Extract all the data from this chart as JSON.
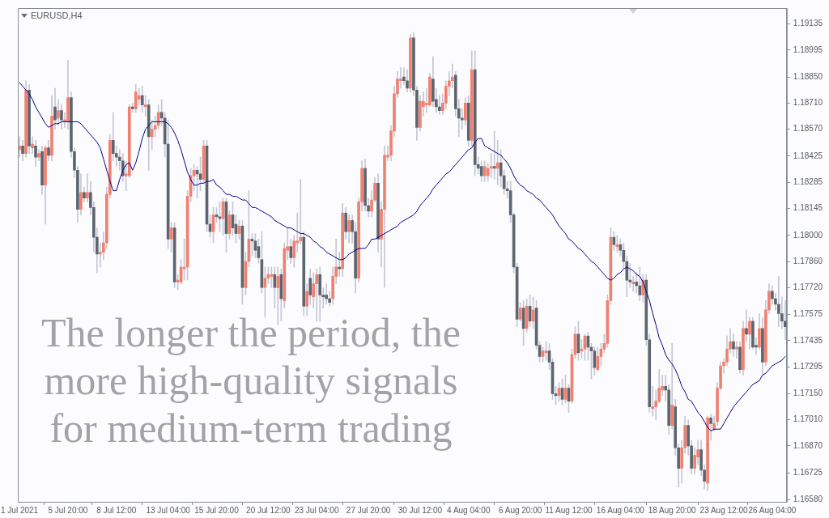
{
  "chart_data": {
    "type": "candlestick",
    "title": "EURUSD,H4",
    "annotations": [
      "The longer the period, the more high-quality signals for medium-term trading"
    ],
    "ylim": [
      1.1657,
      1.1922
    ],
    "yticks": [
      1.19135,
      1.18995,
      {
        "value": 1.1885,
        "label": "1.18850"
      },
      {
        "value": 1.1871,
        "label": "1.18710"
      },
      {
        "value": 1.1857,
        "label": "1.18570"
      },
      1.18425,
      1.18285,
      1.18145,
      {
        "value": 1.18,
        "label": "1.18000"
      },
      {
        "value": 1.1786,
        "label": "1.17860"
      },
      {
        "value": 1.1772,
        "label": "1.17720"
      },
      1.17575,
      1.17435,
      1.17295,
      {
        "value": 1.1715,
        "label": "1.17150"
      },
      {
        "value": 1.1701,
        "label": "1.17010"
      },
      {
        "value": 1.1687,
        "label": "1.16870"
      },
      1.16725,
      {
        "value": 1.1658,
        "label": "1.16580"
      }
    ],
    "categories": [
      "1 Jul 2021",
      null,
      null,
      null,
      null,
      null,
      null,
      null,
      null,
      null,
      null,
      null,
      null,
      null,
      null,
      "5 Jul 20:00",
      null,
      null,
      null,
      null,
      null,
      null,
      null,
      null,
      null,
      null,
      null,
      null,
      null,
      null,
      "8 Jul 12:00",
      null,
      null,
      null,
      null,
      null,
      null,
      null,
      null,
      null,
      null,
      null,
      null,
      null,
      null,
      null,
      "13 Jul 04:00",
      null,
      null,
      null,
      null,
      null,
      null,
      null,
      null,
      null,
      null,
      null,
      null,
      null,
      null,
      "15 Jul 20:00",
      null,
      null,
      null,
      null,
      null,
      null,
      null,
      null,
      null,
      null,
      null,
      null,
      null,
      null,
      null,
      "20 Jul 12:00",
      null,
      null,
      null,
      null,
      null,
      null,
      null,
      null,
      null,
      null,
      null,
      null,
      null,
      null,
      "23 Jul 04:00",
      null,
      null,
      null,
      null,
      null,
      null,
      null,
      null,
      null,
      null,
      null,
      null,
      null,
      null,
      null,
      "27 Jul 20:00",
      null,
      null,
      null,
      null,
      null,
      null,
      null,
      null,
      null,
      null,
      null,
      null,
      null,
      null,
      null,
      "30 Jul 12:00",
      null,
      null,
      null,
      null,
      null,
      null,
      null,
      null,
      null,
      null,
      null,
      null,
      null,
      null,
      "4 Aug 04:00",
      null,
      null,
      null,
      null,
      null,
      null,
      null,
      null,
      null,
      null,
      null,
      null,
      null,
      null,
      null,
      "6 Aug 20:00",
      null,
      null,
      null,
      null,
      null,
      null,
      null,
      null,
      null,
      null,
      null,
      null,
      null,
      null,
      "11 Aug 12:00",
      null,
      null,
      null,
      null,
      null,
      null,
      null,
      null,
      null,
      null,
      null,
      null,
      null,
      null,
      null,
      "16 Aug 04:00",
      null,
      null,
      null,
      null,
      null,
      null,
      null,
      null,
      null,
      null,
      null,
      null,
      null,
      null,
      null,
      "18 Aug 20:00",
      null,
      null,
      null,
      null,
      null,
      null,
      null,
      null,
      null,
      null,
      null,
      null,
      null,
      null,
      null,
      "23 Aug 12:00",
      null,
      null,
      null,
      null,
      null,
      null,
      null,
      null,
      null,
      null,
      null,
      null,
      null,
      null,
      "26 Aug 04:00",
      null,
      null,
      null,
      null
    ],
    "series": [
      {
        "type": "candlestick",
        "ohlc": [
          [
            1.1846,
            1.1853,
            1.1842,
            1.1848
          ],
          [
            1.1848,
            1.1851,
            1.184,
            1.1844
          ],
          [
            1.1844,
            1.1883,
            1.1842,
            1.1878
          ],
          [
            1.1878,
            1.1881,
            1.1844,
            1.1848
          ],
          [
            1.1847,
            1.1853,
            1.1844,
            1.1849
          ],
          [
            1.1848,
            1.1851,
            1.1837,
            1.1842
          ],
          [
            1.1842,
            1.1846,
            1.184,
            1.1844
          ],
          [
            1.1845,
            1.1848,
            1.1822,
            1.1827
          ],
          [
            1.1827,
            1.1848,
            1.1806,
            1.1847
          ],
          [
            1.1847,
            1.1851,
            1.184,
            1.1843
          ],
          [
            1.1843,
            1.1875,
            1.184,
            1.1864
          ],
          [
            1.1869,
            1.1879,
            1.1857,
            1.1862
          ],
          [
            1.1863,
            1.1873,
            1.1859,
            1.1867
          ],
          [
            1.1867,
            1.187,
            1.1857,
            1.1862
          ],
          [
            1.1861,
            1.1866,
            1.1858,
            1.1862
          ],
          [
            1.1861,
            1.1894,
            1.1857,
            1.1874
          ],
          [
            1.1874,
            1.1877,
            1.1842,
            1.1845
          ],
          [
            1.1845,
            1.1847,
            1.1831,
            1.1835
          ],
          [
            1.1835,
            1.1837,
            1.1807,
            1.1814
          ],
          [
            1.1814,
            1.1833,
            1.1811,
            1.1823
          ],
          [
            1.1823,
            1.1826,
            1.1818,
            1.182
          ],
          [
            1.182,
            1.1833,
            1.1818,
            1.1823
          ],
          [
            1.1823,
            1.1829,
            1.1811,
            1.1815
          ],
          [
            1.1815,
            1.1818,
            1.1791,
            1.1799
          ],
          [
            1.1799,
            1.1804,
            1.178,
            1.179
          ],
          [
            1.179,
            1.1796,
            1.1783,
            1.1791
          ],
          [
            1.1791,
            1.1802,
            1.1787,
            1.1796
          ],
          [
            1.1796,
            1.1826,
            1.1793,
            1.1822
          ],
          [
            1.1822,
            1.1854,
            1.182,
            1.1851
          ],
          [
            1.1851,
            1.1866,
            1.184,
            1.1844
          ],
          [
            1.1844,
            1.1848,
            1.1837,
            1.1842
          ],
          [
            1.1842,
            1.1846,
            1.1835,
            1.184
          ],
          [
            1.184,
            1.1844,
            1.1829,
            1.1832
          ],
          [
            1.1832,
            1.184,
            1.1824,
            1.1833
          ],
          [
            1.1832,
            1.187,
            1.1831,
            1.1869
          ],
          [
            1.1869,
            1.1871,
            1.1866,
            1.1868
          ],
          [
            1.1868,
            1.1881,
            1.1866,
            1.1877
          ],
          [
            1.1873,
            1.1879,
            1.187,
            1.1875
          ],
          [
            1.1875,
            1.188,
            1.1866,
            1.187
          ],
          [
            1.1869,
            1.1875,
            1.1864,
            1.187
          ],
          [
            1.187,
            1.1873,
            1.1835,
            1.1853
          ],
          [
            1.1853,
            1.1862,
            1.1846,
            1.1857
          ],
          [
            1.1857,
            1.1864,
            1.1853,
            1.1859
          ],
          [
            1.1859,
            1.187,
            1.1857,
            1.1866
          ],
          [
            1.1866,
            1.1873,
            1.1859,
            1.1863
          ],
          [
            1.1863,
            1.1866,
            1.1842,
            1.1849
          ],
          [
            1.1849,
            1.1862,
            1.1793,
            1.1798
          ],
          [
            1.1798,
            1.1807,
            1.1791,
            1.1804
          ],
          [
            1.1804,
            1.1807,
            1.1772,
            1.1775
          ],
          [
            1.1775,
            1.1779,
            1.1771,
            1.1776
          ],
          [
            1.1775,
            1.1787,
            1.1774,
            1.1783
          ],
          [
            1.1782,
            1.1798,
            1.1776,
            1.1783
          ],
          [
            1.1783,
            1.1824,
            1.1776,
            1.1821
          ],
          [
            1.1821,
            1.1836,
            1.1818,
            1.1832
          ],
          [
            1.1832,
            1.1838,
            1.1824,
            1.1835
          ],
          [
            1.1835,
            1.1837,
            1.182,
            1.1833
          ],
          [
            1.1833,
            1.1842,
            1.1824,
            1.183
          ],
          [
            1.183,
            1.1851,
            1.1828,
            1.1848
          ],
          [
            1.1848,
            1.1851,
            1.1802,
            1.1806
          ],
          [
            1.1806,
            1.1811,
            1.1799,
            1.1802
          ],
          [
            1.1802,
            1.1815,
            1.1796,
            1.1811
          ],
          [
            1.1811,
            1.1815,
            1.1807,
            1.181
          ],
          [
            1.181,
            1.1818,
            1.1802,
            1.1809
          ],
          [
            1.1809,
            1.182,
            1.18,
            1.1818
          ],
          [
            1.1818,
            1.182,
            1.1791,
            1.1801
          ],
          [
            1.1801,
            1.1813,
            1.1798,
            1.1811
          ],
          [
            1.1811,
            1.1818,
            1.18,
            1.1804
          ],
          [
            1.1806,
            1.1811,
            1.1796,
            1.1801
          ],
          [
            1.1801,
            1.1808,
            1.1798,
            1.1805
          ],
          [
            1.1805,
            1.1808,
            1.1763,
            1.1772
          ],
          [
            1.1772,
            1.1791,
            1.1768,
            1.1786
          ],
          [
            1.1786,
            1.1824,
            1.1783,
            1.1798
          ],
          [
            1.1798,
            1.1801,
            1.1789,
            1.1797
          ],
          [
            1.1797,
            1.1801,
            1.1788,
            1.1792
          ],
          [
            1.1794,
            1.1798,
            1.1785,
            1.1788
          ],
          [
            1.1787,
            1.1802,
            1.1769,
            1.1772
          ],
          [
            1.1772,
            1.1783,
            1.1756,
            1.1777
          ],
          [
            1.1777,
            1.1783,
            1.1774,
            1.1779
          ],
          [
            1.1778,
            1.1783,
            1.1772,
            1.1779
          ],
          [
            1.1779,
            1.1783,
            1.1761,
            1.1772
          ],
          [
            1.1772,
            1.1783,
            1.1752,
            1.1778
          ],
          [
            1.1779,
            1.1782,
            1.1754,
            1.1766
          ],
          [
            1.1765,
            1.1796,
            1.1761,
            1.1793
          ],
          [
            1.1792,
            1.1804,
            1.1787,
            1.1794
          ],
          [
            1.1794,
            1.1798,
            1.1785,
            1.1788
          ],
          [
            1.1788,
            1.18,
            1.1783,
            1.1797
          ],
          [
            1.1796,
            1.1812,
            1.1791,
            1.1797
          ],
          [
            1.1797,
            1.183,
            1.1795,
            1.1799
          ],
          [
            1.1799,
            1.1802,
            1.1757,
            1.1762
          ],
          [
            1.1762,
            1.1774,
            1.1757,
            1.177
          ],
          [
            1.1777,
            1.1782,
            1.1763,
            1.1768
          ],
          [
            1.1767,
            1.178,
            1.1761,
            1.1774
          ],
          [
            1.1774,
            1.1782,
            1.1754,
            1.1779
          ],
          [
            1.1779,
            1.1783,
            1.1754,
            1.1768
          ],
          [
            1.1768,
            1.1772,
            1.1761,
            1.1767
          ],
          [
            1.1768,
            1.1774,
            1.1763,
            1.1766
          ],
          [
            1.1766,
            1.177,
            1.1762,
            1.1764
          ],
          [
            1.1766,
            1.1783,
            1.1763,
            1.1778
          ],
          [
            1.1778,
            1.1798,
            1.1774,
            1.1783
          ],
          [
            1.1783,
            1.1791,
            1.1778,
            1.1782
          ],
          [
            1.1782,
            1.1817,
            1.1778,
            1.1812
          ],
          [
            1.1812,
            1.1815,
            1.1798,
            1.1802
          ],
          [
            1.1802,
            1.1811,
            1.1796,
            1.1808
          ],
          [
            1.1808,
            1.1811,
            1.1796,
            1.1802
          ],
          [
            1.1802,
            1.1807,
            1.1769,
            1.1777
          ],
          [
            1.1777,
            1.182,
            1.1775,
            1.1818
          ],
          [
            1.1818,
            1.184,
            1.1813,
            1.1836
          ],
          [
            1.1836,
            1.1841,
            1.1813,
            1.1816
          ],
          [
            1.1816,
            1.182,
            1.181,
            1.1813
          ],
          [
            1.1813,
            1.1824,
            1.181,
            1.1819
          ],
          [
            1.1819,
            1.1831,
            1.1818,
            1.1828
          ],
          [
            1.1828,
            1.1833,
            1.1791,
            1.1798
          ],
          [
            1.1798,
            1.1818,
            1.1783,
            1.1814
          ],
          [
            1.1814,
            1.1848,
            1.1772,
            1.1843
          ],
          [
            1.1842,
            1.1848,
            1.184,
            1.1843
          ],
          [
            1.1843,
            1.1859,
            1.184,
            1.1856
          ],
          [
            1.1856,
            1.188,
            1.1853,
            1.1876
          ],
          [
            1.1876,
            1.1888,
            1.1874,
            1.1884
          ],
          [
            1.1883,
            1.189,
            1.1879,
            1.1884
          ],
          [
            1.1885,
            1.189,
            1.1881,
            1.1883
          ],
          [
            1.1883,
            1.1889,
            1.1877,
            1.1879
          ],
          [
            1.1879,
            1.1908,
            1.1877,
            1.1906
          ],
          [
            1.1906,
            1.1909,
            1.1875,
            1.1878
          ],
          [
            1.1878,
            1.188,
            1.1851,
            1.1858
          ],
          [
            1.1858,
            1.1875,
            1.1856,
            1.1872
          ],
          [
            1.1869,
            1.1877,
            1.1864,
            1.1872
          ],
          [
            1.187,
            1.1879,
            1.1866,
            1.1871
          ],
          [
            1.187,
            1.1887,
            1.1869,
            1.1885
          ],
          [
            1.1884,
            1.1896,
            1.1869,
            1.1872
          ],
          [
            1.1873,
            1.1879,
            1.1866,
            1.1869
          ],
          [
            1.1869,
            1.1875,
            1.1865,
            1.1867
          ],
          [
            1.1867,
            1.1876,
            1.1865,
            1.1871
          ],
          [
            1.1871,
            1.1883,
            1.1868,
            1.188
          ],
          [
            1.188,
            1.1888,
            1.1875,
            1.1883
          ],
          [
            1.1883,
            1.1892,
            1.1879,
            1.1885
          ],
          [
            1.1886,
            1.1888,
            1.1864,
            1.1868
          ],
          [
            1.1868,
            1.1873,
            1.1853,
            1.1863
          ],
          [
            1.1863,
            1.1868,
            1.1857,
            1.1862
          ],
          [
            1.1862,
            1.1874,
            1.1859,
            1.1871
          ],
          [
            1.1871,
            1.1875,
            1.1848,
            1.1851
          ],
          [
            1.1851,
            1.1899,
            1.1848,
            1.1889
          ],
          [
            1.1889,
            1.1899,
            1.1832,
            1.1838
          ],
          [
            1.1838,
            1.1842,
            1.1833,
            1.1836
          ],
          [
            1.1837,
            1.184,
            1.1829,
            1.1832
          ],
          [
            1.1832,
            1.184,
            1.1829,
            1.1837
          ],
          [
            1.1832,
            1.1839,
            1.1829,
            1.1836
          ],
          [
            1.1836,
            1.1844,
            1.1831,
            1.1837
          ],
          [
            1.1837,
            1.1856,
            1.183,
            1.1836
          ],
          [
            1.1836,
            1.1851,
            1.1827,
            1.1839
          ],
          [
            1.1839,
            1.1846,
            1.1826,
            1.1832
          ],
          [
            1.1832,
            1.1835,
            1.1822,
            1.1825
          ],
          [
            1.1825,
            1.1829,
            1.182,
            1.1824
          ],
          [
            1.1824,
            1.1829,
            1.1807,
            1.1811
          ],
          [
            1.1811,
            1.1812,
            1.178,
            1.1783
          ],
          [
            1.1783,
            1.1785,
            1.1751,
            1.1755
          ],
          [
            1.1755,
            1.1764,
            1.1754,
            1.1761
          ],
          [
            1.1761,
            1.1765,
            1.1741,
            1.175
          ],
          [
            1.175,
            1.1766,
            1.1748,
            1.1762
          ],
          [
            1.1762,
            1.1768,
            1.1751,
            1.1754
          ],
          [
            1.1754,
            1.1767,
            1.175,
            1.176
          ],
          [
            1.1761,
            1.1765,
            1.1739,
            1.1741
          ],
          [
            1.1741,
            1.1743,
            1.1732,
            1.1735
          ],
          [
            1.1735,
            1.174,
            1.1732,
            1.1738
          ],
          [
            1.1737,
            1.1743,
            1.1733,
            1.1738
          ],
          [
            1.1738,
            1.1742,
            1.1728,
            1.1732
          ],
          [
            1.1732,
            1.1734,
            1.1712,
            1.1715
          ],
          [
            1.1715,
            1.1719,
            1.1709,
            1.1714
          ],
          [
            1.1714,
            1.1721,
            1.1711,
            1.1718
          ],
          [
            1.1718,
            1.1723,
            1.1709,
            1.1712
          ],
          [
            1.1712,
            1.1725,
            1.171,
            1.1718
          ],
          [
            1.1718,
            1.172,
            1.1705,
            1.1711
          ],
          [
            1.1711,
            1.1739,
            1.171,
            1.1736
          ],
          [
            1.1736,
            1.1751,
            1.1734,
            1.1747
          ],
          [
            1.1747,
            1.1754,
            1.1733,
            1.1737
          ],
          [
            1.1738,
            1.1744,
            1.1734,
            1.1739
          ],
          [
            1.1739,
            1.1747,
            1.1733,
            1.1746
          ],
          [
            1.1746,
            1.1748,
            1.1733,
            1.174
          ],
          [
            1.174,
            1.1742,
            1.1723,
            1.1738
          ],
          [
            1.1738,
            1.174,
            1.1725,
            1.1729
          ],
          [
            1.1728,
            1.174,
            1.1727,
            1.1735
          ],
          [
            1.1735,
            1.1742,
            1.173,
            1.1739
          ],
          [
            1.1739,
            1.1747,
            1.1737,
            1.1742
          ],
          [
            1.1742,
            1.1768,
            1.174,
            1.1765
          ],
          [
            1.1765,
            1.1804,
            1.1763,
            1.1799
          ],
          [
            1.1799,
            1.1802,
            1.1792,
            1.1795
          ],
          [
            1.1794,
            1.18,
            1.1791,
            1.1795
          ],
          [
            1.1795,
            1.1798,
            1.1789,
            1.1792
          ],
          [
            1.1792,
            1.1796,
            1.1782,
            1.1786
          ],
          [
            1.1786,
            1.1789,
            1.1767,
            1.1776
          ],
          [
            1.1776,
            1.1785,
            1.1772,
            1.1775
          ],
          [
            1.1774,
            1.1778,
            1.177,
            1.1775
          ],
          [
            1.1775,
            1.178,
            1.1769,
            1.1773
          ],
          [
            1.1773,
            1.1783,
            1.1765,
            1.1768
          ],
          [
            1.1768,
            1.1779,
            1.1764,
            1.1776
          ],
          [
            1.1776,
            1.1779,
            1.1741,
            1.1744
          ],
          [
            1.1744,
            1.1747,
            1.1705,
            1.1708
          ],
          [
            1.1707,
            1.1719,
            1.1703,
            1.1708
          ],
          [
            1.1708,
            1.1717,
            1.1701,
            1.1711
          ],
          [
            1.1711,
            1.1728,
            1.171,
            1.1718
          ],
          [
            1.1717,
            1.1725,
            1.1714,
            1.1719
          ],
          [
            1.1719,
            1.1725,
            1.1711,
            1.1717
          ],
          [
            1.1717,
            1.172,
            1.1693,
            1.1698
          ],
          [
            1.1698,
            1.1742,
            1.1696,
            1.1709
          ],
          [
            1.1708,
            1.1712,
            1.1682,
            1.1686
          ],
          [
            1.1686,
            1.1688,
            1.1665,
            1.1675
          ],
          [
            1.1675,
            1.169,
            1.1667,
            1.1686
          ],
          [
            1.1686,
            1.1703,
            1.1683,
            1.1698
          ],
          [
            1.1698,
            1.1701,
            1.1682,
            1.1687
          ],
          [
            1.1687,
            1.169,
            1.1672,
            1.1675
          ],
          [
            1.1675,
            1.1686,
            1.1672,
            1.1682
          ],
          [
            1.1681,
            1.169,
            1.1677,
            1.1685
          ],
          [
            1.1685,
            1.169,
            1.1671,
            1.1674
          ],
          [
            1.1674,
            1.1677,
            1.1664,
            1.1668
          ],
          [
            1.1667,
            1.1703,
            1.1663,
            1.1702
          ],
          [
            1.1702,
            1.1704,
            1.169,
            1.1699
          ],
          [
            1.1696,
            1.1703,
            1.1695,
            1.1699
          ],
          [
            1.17,
            1.1721,
            1.1698,
            1.1718
          ],
          [
            1.1718,
            1.1732,
            1.1717,
            1.173
          ],
          [
            1.173,
            1.1734,
            1.1726,
            1.1732
          ],
          [
            1.1732,
            1.1746,
            1.173,
            1.1739
          ],
          [
            1.1739,
            1.175,
            1.1737,
            1.1743
          ],
          [
            1.1743,
            1.1747,
            1.1735,
            1.1739
          ],
          [
            1.1739,
            1.1743,
            1.1734,
            1.174
          ],
          [
            1.174,
            1.1743,
            1.1726,
            1.1728
          ],
          [
            1.1728,
            1.1754,
            1.1725,
            1.175
          ],
          [
            1.175,
            1.176,
            1.1743,
            1.1747
          ],
          [
            1.1747,
            1.1756,
            1.1739,
            1.1754
          ],
          [
            1.1754,
            1.1756,
            1.1739,
            1.174
          ],
          [
            1.1741,
            1.1745,
            1.1736,
            1.174
          ],
          [
            1.174,
            1.1758,
            1.1739,
            1.175
          ],
          [
            1.175,
            1.1756,
            1.1725,
            1.1732
          ],
          [
            1.1732,
            1.1765,
            1.173,
            1.176
          ],
          [
            1.176,
            1.1774,
            1.1758,
            1.177
          ],
          [
            1.177,
            1.1773,
            1.1763,
            1.1766
          ],
          [
            1.1766,
            1.1769,
            1.176,
            1.1763
          ],
          [
            1.1763,
            1.1778,
            1.1751,
            1.1758
          ],
          [
            1.1758,
            1.1767,
            1.175,
            1.1754
          ],
          [
            1.1754,
            1.1765,
            1.1744,
            1.1751
          ]
        ],
        "colors": [
          "#f08070",
          "#5f656e",
          "#f08070",
          "#5f656e",
          "#f08070",
          "#5f656e",
          "#f08070",
          "#5f656e",
          "#f08070",
          "#5f656e",
          "#f08070",
          "#5f656e",
          "#f08070",
          "#5f656e",
          "#f08070",
          "#f08070",
          "#5f656e",
          "#5f656e",
          "#5f656e",
          "#f08070",
          "#5f656e",
          "#f08070",
          "#5f656e",
          "#5f656e",
          "#5f656e",
          "#f08070",
          "#f08070",
          "#f08070",
          "#f08070",
          "#5f656e",
          "#5f656e",
          "#5f656e",
          "#5f656e",
          "#f08070",
          "#f08070",
          "#5f656e",
          "#f08070",
          "#f08070",
          "#5f656e",
          "#f08070",
          "#5f656e",
          "#f08070",
          "#f08070",
          "#f08070",
          "#5f656e",
          "#5f656e",
          "#5f656e",
          "#f08070",
          "#5f656e",
          "#f08070",
          "#f08070",
          "#f08070",
          "#f08070",
          "#f08070",
          "#f08070",
          "#5f656e",
          "#5f656e",
          "#f08070",
          "#5f656e",
          "#5f656e",
          "#f08070",
          "#5f656e",
          "#5f656e",
          "#f08070",
          "#5f656e",
          "#f08070",
          "#5f656e",
          "#5f656e",
          "#f08070",
          "#5f656e",
          "#f08070",
          "#f08070",
          "#5f656e",
          "#5f656e",
          "#5f656e",
          "#5f656e",
          "#f08070",
          "#f08070",
          "#f08070",
          "#5f656e",
          "#f08070",
          "#5f656e",
          "#f08070",
          "#f08070",
          "#5f656e",
          "#f08070",
          "#f08070",
          "#f08070",
          "#5f656e",
          "#f08070",
          "#5f656e",
          "#f08070",
          "#f08070",
          "#5f656e",
          "#5f656e",
          "#5f656e",
          "#5f656e",
          "#f08070",
          "#f08070",
          "#5f656e",
          "#f08070",
          "#5f656e",
          "#f08070",
          "#5f656e",
          "#5f656e",
          "#f08070",
          "#f08070",
          "#5f656e",
          "#5f656e",
          "#f08070",
          "#f08070",
          "#5f656e",
          "#f08070",
          "#f08070",
          "#f08070",
          "#f08070",
          "#f08070",
          "#f08070",
          "#f08070",
          "#5f656e",
          "#5f656e",
          "#f08070",
          "#5f656e",
          "#5f656e",
          "#f08070",
          "#f08070",
          "#f08070",
          "#f08070",
          "#5f656e",
          "#5f656e",
          "#5f656e",
          "#f08070",
          "#f08070",
          "#f08070",
          "#f08070",
          "#5f656e",
          "#5f656e",
          "#5f656e",
          "#f08070",
          "#5f656e",
          "#f08070",
          "#5f656e",
          "#5f656e",
          "#5f656e",
          "#f08070",
          "#f08070",
          "#f08070",
          "#5f656e",
          "#f08070",
          "#5f656e",
          "#5f656e",
          "#5f656e",
          "#5f656e",
          "#5f656e",
          "#5f656e",
          "#f08070",
          "#5f656e",
          "#f08070",
          "#5f656e",
          "#f08070",
          "#5f656e",
          "#5f656e",
          "#f08070",
          "#f08070",
          "#5f656e",
          "#5f656e",
          "#5f656e",
          "#f08070",
          "#5f656e",
          "#f08070",
          "#5f656e",
          "#f08070",
          "#f08070",
          "#5f656e",
          "#f08070",
          "#f08070",
          "#5f656e",
          "#5f656e",
          "#5f656e",
          "#f08070",
          "#f08070",
          "#f08070",
          "#f08070",
          "#f08070",
          "#5f656e",
          "#f08070",
          "#5f656e",
          "#5f656e",
          "#5f656e",
          "#5f656e",
          "#f08070",
          "#5f656e",
          "#5f656e",
          "#f08070",
          "#5f656e",
          "#5f656e",
          "#f08070",
          "#f08070",
          "#f08070",
          "#f08070",
          "#5f656e",
          "#5f656e",
          "#f08070",
          "#5f656e",
          "#5f656e",
          "#f08070",
          "#f08070",
          "#5f656e",
          "#5f656e",
          "#f08070",
          "#f08070",
          "#5f656e",
          "#5f656e",
          "#f08070",
          "#5f656e",
          "#f08070",
          "#f08070",
          "#f08070",
          "#f08070",
          "#f08070",
          "#f08070",
          "#5f656e",
          "#f08070",
          "#5f656e",
          "#f08070",
          "#5f656e",
          "#f08070",
          "#5f656e",
          "#5f656e",
          "#f08070",
          "#5f656e",
          "#f08070",
          "#f08070",
          "#5f656e",
          "#5f656e",
          "#5f656e",
          "#5f656e",
          "#5f656e"
        ]
      },
      {
        "type": "line",
        "color": "#00008b",
        "values": [
          1.1882,
          1.188,
          1.1878,
          1.1876,
          1.1873,
          1.1869,
          1.1866,
          1.1863,
          1.186,
          1.1858,
          1.1859,
          1.186,
          1.186,
          1.1861,
          1.1861,
          1.1861,
          1.1861,
          1.1861,
          1.1861,
          1.186,
          1.1858,
          1.1856,
          1.1854,
          1.1852,
          1.185,
          1.1847,
          1.1841,
          1.1835,
          1.1829,
          1.1824,
          1.1824,
          1.183,
          1.1835,
          1.1838,
          1.1839,
          1.1835,
          1.1839,
          1.1845,
          1.1852,
          1.1857,
          1.1859,
          1.1861,
          1.1861,
          1.1861,
          1.1861,
          1.1861,
          1.186,
          1.1858,
          1.1855,
          1.1851,
          1.1846,
          1.184,
          1.1834,
          1.183,
          1.1827,
          1.1827,
          1.1828,
          1.1828,
          1.1829,
          1.1829,
          1.183,
          1.1827,
          1.1826,
          1.1824,
          1.1822,
          1.1822,
          1.1821,
          1.1821,
          1.182,
          1.1819,
          1.1819,
          1.1817,
          1.1815,
          1.1815,
          1.1814,
          1.1813,
          1.1812,
          1.1811,
          1.181,
          1.1808,
          1.1807,
          1.1806,
          1.1805,
          1.1804,
          1.1804,
          1.1803,
          1.1802,
          1.1801,
          1.1801,
          1.18,
          1.1799,
          1.1797,
          1.1796,
          1.1794,
          1.1793,
          1.1791,
          1.179,
          1.1789,
          1.1788,
          1.1787,
          1.1787,
          1.1788,
          1.179,
          1.1791,
          1.1792,
          1.1793,
          1.1793,
          1.1793,
          1.1795,
          1.1798,
          1.1798,
          1.1799,
          1.18,
          1.1801,
          1.1802,
          1.1803,
          1.1804,
          1.1805,
          1.1807,
          1.1808,
          1.1809,
          1.181,
          1.1811,
          1.1813,
          1.1816,
          1.1818,
          1.182,
          1.1822,
          1.1825,
          1.1827,
          1.1829,
          1.1831,
          1.1833,
          1.1834,
          1.1836,
          1.1838,
          1.184,
          1.1842,
          1.1844,
          1.1846,
          1.1847,
          1.185,
          1.1852,
          1.1852,
          1.1848,
          1.1847,
          1.1846,
          1.1845,
          1.1844,
          1.1843,
          1.1841,
          1.1839,
          1.1836,
          1.1832,
          1.1829,
          1.1827,
          1.1826,
          1.1824,
          1.1823,
          1.1822,
          1.182,
          1.1819,
          1.1817,
          1.1815,
          1.1813,
          1.1811,
          1.1808,
          1.1805,
          1.1803,
          1.1801,
          1.1798,
          1.1797,
          1.1795,
          1.1793,
          1.1792,
          1.179,
          1.1788,
          1.1786,
          1.1785,
          1.1783,
          1.1781,
          1.1779,
          1.1777,
          1.1776,
          1.1777,
          1.1779,
          1.178,
          1.1782,
          1.1783,
          1.1782,
          1.1781,
          1.1779,
          1.1778,
          1.1775,
          1.177,
          1.1765,
          1.1758,
          1.1752,
          1.1745,
          1.1741,
          1.1736,
          1.1733,
          1.1731,
          1.1728,
          1.1724,
          1.1719,
          1.1716,
          1.1712,
          1.1711,
          1.1708,
          1.1705,
          1.1703,
          1.17,
          1.1697,
          1.1695,
          1.1696,
          1.1696,
          1.1696,
          1.1699,
          1.1702,
          1.1705,
          1.1708,
          1.171,
          1.1712,
          1.1714,
          1.1716,
          1.1718,
          1.172,
          1.1721,
          1.1722,
          1.1725,
          1.1726,
          1.1728,
          1.173,
          1.1731,
          1.1732,
          1.1733,
          1.1735
        ]
      }
    ]
  }
}
